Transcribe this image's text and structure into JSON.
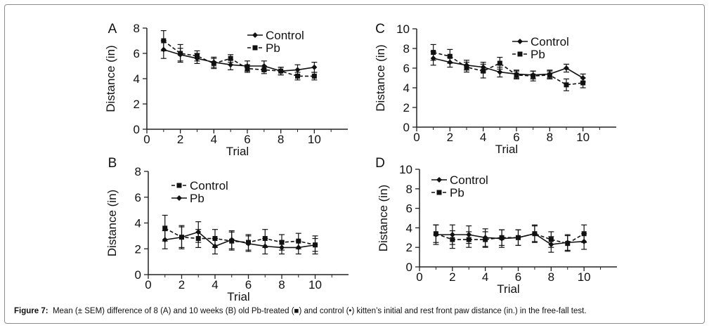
{
  "caption": {
    "label": "Figure 7:",
    "text": "Mean (± SEM) difference of 8 (A) and 10 weeks (B) old Pb-treated (■) and control (•) kitten’s initial and rest front paw distance (in.) in the free-fall test."
  },
  "chart_data": [
    {
      "panel": "A",
      "type": "line",
      "xlabel": "Trial",
      "ylabel": "Distance (in)",
      "xlim": [
        0,
        12
      ],
      "ylim": [
        0,
        8
      ],
      "xticks": [
        0,
        2,
        4,
        6,
        8,
        10
      ],
      "yticks": [
        0,
        2,
        4,
        6,
        8
      ],
      "legend": "top-right",
      "x": [
        1,
        2,
        3,
        4,
        5,
        6,
        7,
        8,
        9,
        10
      ],
      "series": [
        {
          "name": "Control",
          "marker": "diamond",
          "dash": "solid",
          "values": [
            6.3,
            5.9,
            5.6,
            5.3,
            5.1,
            5.0,
            5.0,
            4.6,
            4.7,
            4.9
          ],
          "errors": [
            0.7,
            0.5,
            0.4,
            0.4,
            0.4,
            0.4,
            0.4,
            0.3,
            0.4,
            0.4
          ]
        },
        {
          "name": "Pb",
          "marker": "square",
          "dash": "dashed",
          "values": [
            7.0,
            6.0,
            5.8,
            5.2,
            5.6,
            4.8,
            4.7,
            4.6,
            4.2,
            4.2
          ],
          "errors": [
            0.8,
            0.7,
            0.4,
            0.4,
            0.3,
            0.3,
            0.3,
            0.3,
            0.3,
            0.3
          ]
        }
      ]
    },
    {
      "panel": "B",
      "type": "line",
      "xlabel": "Trial",
      "ylabel": "Distance (in)",
      "xlim": [
        0,
        12
      ],
      "ylim": [
        0,
        8
      ],
      "xticks": [
        0,
        2,
        4,
        6,
        8,
        10
      ],
      "yticks": [
        0,
        2,
        4,
        6,
        8
      ],
      "legend": "top-left",
      "x": [
        1,
        2,
        3,
        4,
        5,
        6,
        7,
        8,
        9,
        10
      ],
      "series": [
        {
          "name": "Control",
          "marker": "square",
          "dash": "dashed",
          "values": [
            3.6,
            2.9,
            2.8,
            2.8,
            2.6,
            2.5,
            2.8,
            2.5,
            2.6,
            2.3
          ],
          "errors": [
            1.0,
            0.8,
            0.7,
            0.7,
            0.7,
            0.6,
            0.7,
            0.6,
            0.6,
            0.7
          ]
        },
        {
          "name": "Pb",
          "marker": "diamond",
          "dash": "solid",
          "values": [
            2.7,
            2.9,
            3.3,
            2.2,
            2.7,
            2.4,
            2.2,
            2.1,
            2.1,
            2.3
          ],
          "errors": [
            0.7,
            0.9,
            0.8,
            0.6,
            0.7,
            0.6,
            0.6,
            0.5,
            0.5,
            0.5
          ]
        }
      ]
    },
    {
      "panel": "C",
      "type": "line",
      "xlabel": "Trial",
      "ylabel": "Distance (in)",
      "xlim": [
        0,
        12
      ],
      "ylim": [
        0,
        10
      ],
      "xticks": [
        0,
        2,
        4,
        6,
        8,
        10
      ],
      "yticks": [
        0,
        2,
        4,
        6,
        8,
        10
      ],
      "legend": "top-right",
      "x": [
        1,
        2,
        3,
        4,
        5,
        6,
        7,
        8,
        9,
        10
      ],
      "series": [
        {
          "name": "Control",
          "marker": "diamond",
          "dash": "solid",
          "values": [
            7.0,
            6.6,
            6.3,
            6.1,
            5.6,
            5.4,
            5.3,
            5.4,
            6.0,
            5.0
          ],
          "errors": [
            0.7,
            0.5,
            0.5,
            0.5,
            0.5,
            0.4,
            0.4,
            0.4,
            0.4,
            0.4
          ]
        },
        {
          "name": "Pb",
          "marker": "square",
          "dash": "dashed",
          "values": [
            7.6,
            7.2,
            6.1,
            5.7,
            6.5,
            5.3,
            5.2,
            5.3,
            4.3,
            4.5
          ],
          "errors": [
            0.8,
            0.7,
            0.5,
            0.7,
            0.6,
            0.4,
            0.5,
            0.4,
            0.6,
            0.5
          ]
        }
      ]
    },
    {
      "panel": "D",
      "type": "line",
      "xlabel": "Trial",
      "ylabel": "Distance (in)",
      "xlim": [
        0,
        12
      ],
      "ylim": [
        0,
        10
      ],
      "xticks": [
        0,
        2,
        4,
        6,
        8,
        10
      ],
      "yticks": [
        0,
        2,
        4,
        6,
        8,
        10
      ],
      "legend": "top-left",
      "x": [
        1,
        2,
        3,
        4,
        5,
        6,
        7,
        8,
        9,
        10
      ],
      "series": [
        {
          "name": "Control",
          "marker": "diamond",
          "dash": "solid",
          "values": [
            3.3,
            3.3,
            3.3,
            3.0,
            2.9,
            3.0,
            3.4,
            2.3,
            2.5,
            2.6
          ],
          "errors": [
            1.0,
            1.0,
            0.9,
            0.9,
            0.9,
            0.8,
            0.8,
            0.8,
            0.8,
            0.8
          ]
        },
        {
          "name": "Pb",
          "marker": "square",
          "dash": "dashed",
          "values": [
            3.4,
            2.8,
            2.8,
            2.8,
            3.0,
            3.0,
            3.4,
            2.8,
            2.4,
            3.4
          ],
          "errors": [
            0.9,
            0.9,
            0.8,
            0.8,
            0.8,
            0.8,
            0.9,
            0.8,
            0.8,
            0.9
          ]
        }
      ]
    }
  ]
}
